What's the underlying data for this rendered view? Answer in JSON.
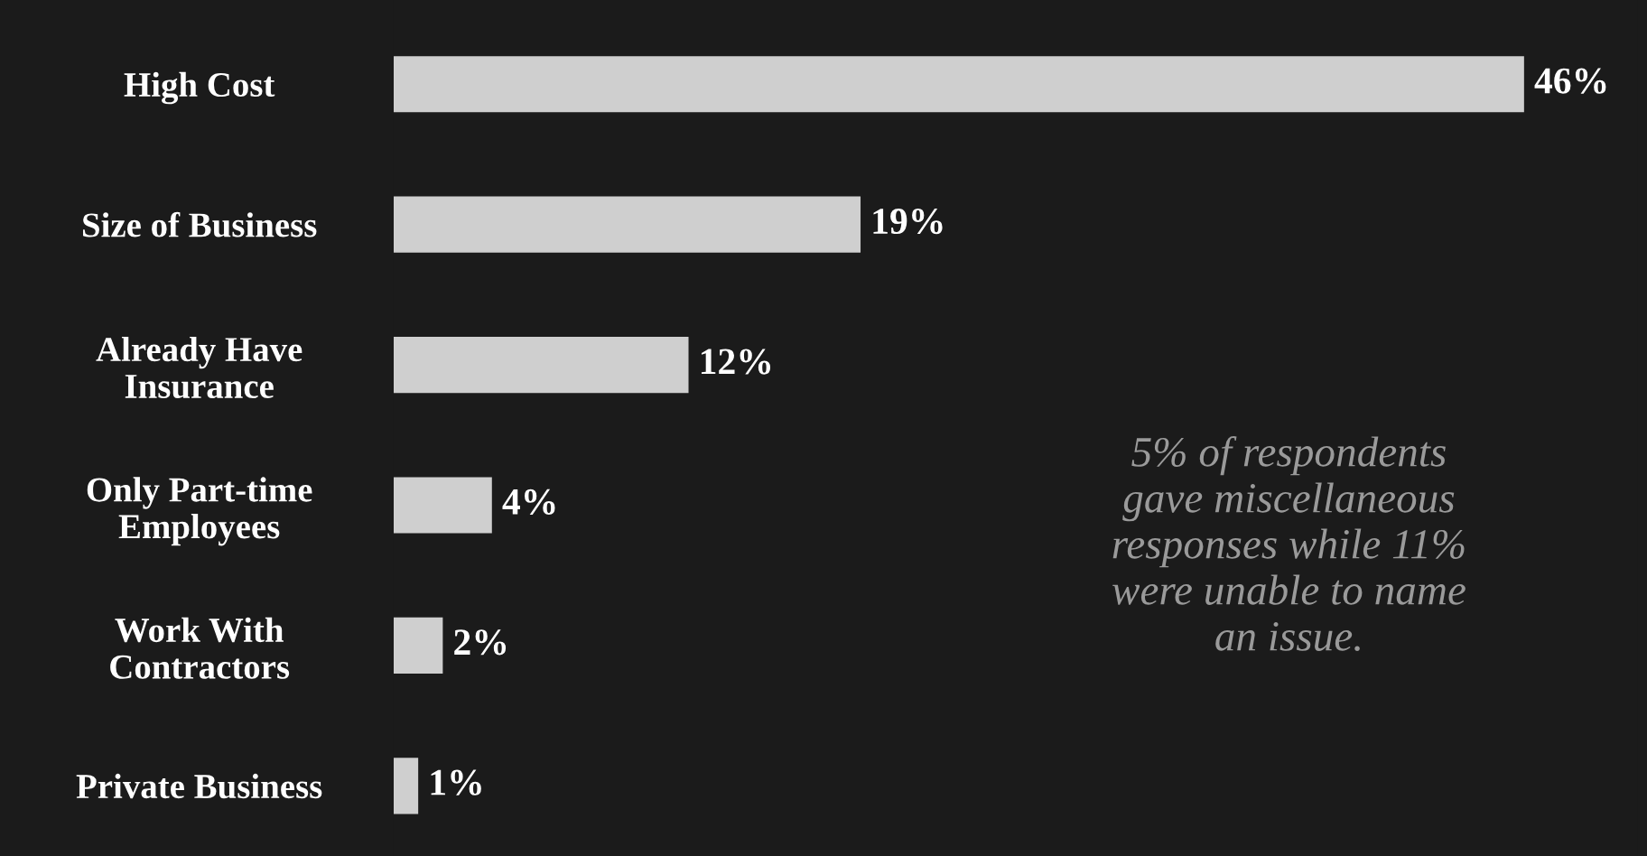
{
  "chart_data": {
    "type": "bar",
    "orientation": "horizontal",
    "categories": [
      "High Cost",
      "Size of Business",
      "Already Have\nInsurance",
      "Only Part-time\nEmployees",
      "Work With\nContractors",
      "Private Business"
    ],
    "values": [
      46,
      19,
      12,
      4,
      2,
      1
    ],
    "value_labels": [
      "46%",
      "19%",
      "12%",
      "4%",
      "2%",
      "1%"
    ],
    "color": "#cfcfcf",
    "tick_labels": "y",
    "grid": false,
    "legend": false,
    "annotations": [
      "5% of respondents\ngave miscellaneous\nresponses while 11%\nwere unable to name\nan issue."
    ]
  }
}
